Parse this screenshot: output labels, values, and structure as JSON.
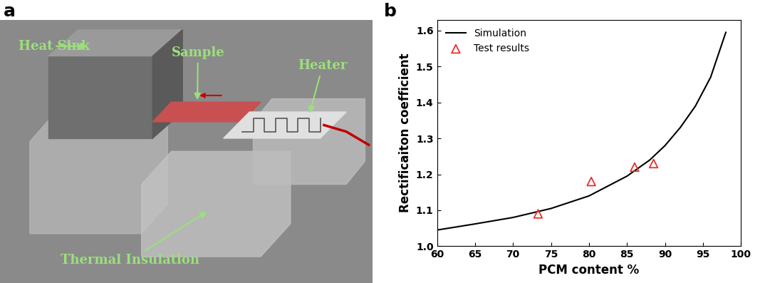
{
  "diagram": {
    "panel_label": "a",
    "parts": [
      "Heat Sink",
      "Sample",
      "Heater",
      "Thermal Insulation"
    ]
  },
  "chart_data": {
    "panel_label": "b",
    "type": "line",
    "x_label": "PCM content %",
    "y_label": "Rectificaiton coefficient",
    "xlim": [
      60,
      100
    ],
    "xticks": [
      60,
      65,
      70,
      75,
      80,
      85,
      90,
      95,
      100
    ],
    "ylim": [
      1.0,
      1.63
    ],
    "yticks": [
      1.0,
      1.1,
      1.2,
      1.3,
      1.4,
      1.5,
      1.6
    ],
    "legend": "upper left",
    "series": [
      {
        "name": "Simulation",
        "type": "line",
        "color": "#000000",
        "line_style": "solid",
        "x": [
          60,
          65,
          70,
          75,
          80,
          85,
          88,
          90,
          92,
          94,
          96,
          98
        ],
        "values": [
          1.045,
          1.062,
          1.08,
          1.105,
          1.14,
          1.195,
          1.24,
          1.28,
          1.33,
          1.39,
          1.47,
          1.595
        ]
      },
      {
        "name": "Test results",
        "type": "scatter",
        "color": "#e8312a",
        "marker": "triangle",
        "x": [
          73.3,
          80.3,
          86.0,
          88.5
        ],
        "values": [
          1.09,
          1.18,
          1.22,
          1.23
        ]
      }
    ]
  }
}
